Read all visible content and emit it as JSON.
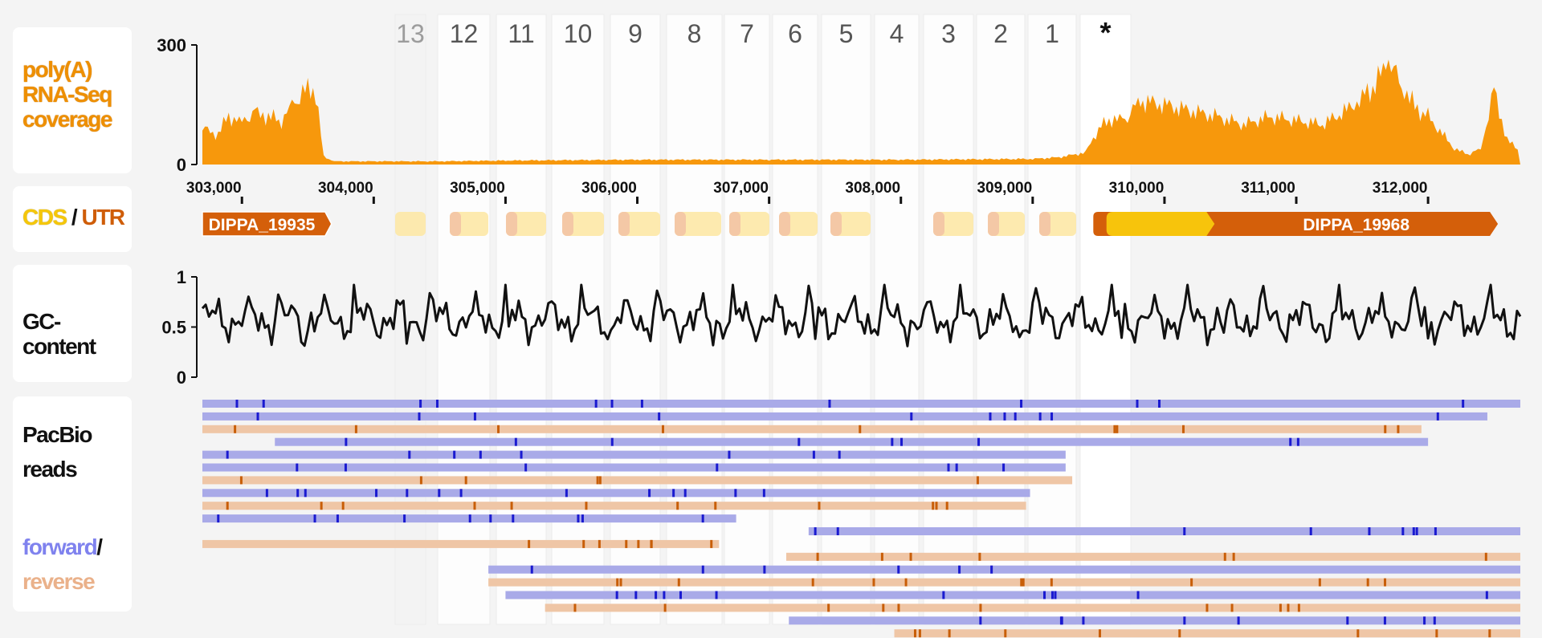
{
  "colors": {
    "coverage": "#f7980c",
    "cds": "#f7c40c",
    "utr": "#d45f0a",
    "forward_read": "#a9aae8",
    "forward_mark": "#1a1ad0",
    "reverse_read": "#efc6a6",
    "reverse_mark": "#c85e08",
    "gc_line": "#111111"
  },
  "labels": {
    "coverage": [
      "poly(A)",
      "RNA-Seq",
      "coverage"
    ],
    "cds": "CDS",
    "slash": "/",
    "utr": "UTR",
    "gc": "GC-content",
    "pacbio": [
      "PacBio",
      "reads"
    ],
    "forward": "forward",
    "reverse": "reverse"
  },
  "columns": [
    {
      "label": "13",
      "faded": true
    },
    {
      "label": "12"
    },
    {
      "label": "11"
    },
    {
      "label": "10"
    },
    {
      "label": "9"
    },
    {
      "label": "8"
    },
    {
      "label": "7"
    },
    {
      "label": "6"
    },
    {
      "label": "5"
    },
    {
      "label": "4"
    },
    {
      "label": "3"
    },
    {
      "label": "2"
    },
    {
      "label": "1"
    },
    {
      "label": "*"
    }
  ],
  "chart_data": {
    "type": "area",
    "coverage": {
      "ylim": [
        0,
        300
      ],
      "yticks": [
        "300",
        "0"
      ],
      "x": [
        302700,
        302800,
        302900,
        303000,
        303100,
        303200,
        303300,
        303400,
        303500,
        303560,
        303620,
        303700,
        304500,
        305000,
        306000,
        307000,
        308000,
        309000,
        309200,
        309400,
        309500,
        309600,
        309700,
        309800,
        310000,
        310200,
        310400,
        310600,
        310800,
        311000,
        311200,
        311400,
        311500,
        311600,
        311700,
        311800,
        311900,
        312000,
        312200,
        312300,
        312400,
        312500,
        312600,
        312700
      ],
      "y": [
        95,
        70,
        120,
        110,
        130,
        120,
        110,
        155,
        195,
        180,
        20,
        8,
        8,
        10,
        12,
        12,
        12,
        14,
        18,
        30,
        90,
        115,
        110,
        160,
        150,
        135,
        120,
        100,
        120,
        110,
        100,
        140,
        170,
        200,
        260,
        200,
        145,
        120,
        40,
        25,
        40,
        185,
        60,
        35
      ]
    },
    "genome_axis": {
      "range": [
        302700,
        312700
      ],
      "ticks": [
        303000,
        304000,
        305000,
        306000,
        307000,
        308000,
        309000,
        310000,
        311000,
        312000
      ],
      "tick_labels": [
        "303,000",
        "304,000",
        "305,000",
        "306,000",
        "307,000",
        "308,000",
        "309,000",
        "310,000",
        "311,000",
        "312,000"
      ]
    },
    "genes": [
      {
        "name": "DIPPA_19935",
        "start": 302700,
        "end": 303680
      },
      {
        "name": "DIPPA_19968",
        "start": 309460,
        "end": 312530,
        "cds_start": 309560,
        "cds_end": 310380
      }
    ],
    "gc_content": {
      "ylim": [
        0,
        1
      ],
      "yticks": [
        "1",
        "0.5",
        "0"
      ],
      "mean": 0.58,
      "points": 400
    }
  },
  "reads": [
    {
      "dir": "f",
      "start": 302700,
      "end": 312700
    },
    {
      "dir": "f",
      "start": 302700,
      "end": 312450
    },
    {
      "dir": "r",
      "start": 302700,
      "end": 311950
    },
    {
      "dir": "f",
      "start": 303250,
      "end": 312000
    },
    {
      "dir": "f",
      "start": 302700,
      "end": 309250
    },
    {
      "dir": "f",
      "start": 302700,
      "end": 309250
    },
    {
      "dir": "r",
      "start": 302700,
      "end": 309300
    },
    {
      "dir": "f",
      "start": 302700,
      "end": 308980
    },
    {
      "dir": "r",
      "start": 302700,
      "end": 308950
    },
    {
      "dir": "f",
      "start": 302700,
      "end": 306750
    },
    {
      "dir": "f",
      "start": 307300,
      "end": 312700
    },
    {
      "dir": "r",
      "start": 302700,
      "end": 306620
    },
    {
      "dir": "r",
      "start": 307130,
      "end": 312700
    },
    {
      "dir": "f",
      "start": 304870,
      "end": 312700
    },
    {
      "dir": "r",
      "start": 304870,
      "end": 312700
    },
    {
      "dir": "f",
      "start": 305000,
      "end": 312700
    },
    {
      "dir": "r",
      "start": 305300,
      "end": 312700
    },
    {
      "dir": "f",
      "start": 307150,
      "end": 312700
    },
    {
      "dir": "r",
      "start": 307950,
      "end": 312700
    }
  ]
}
